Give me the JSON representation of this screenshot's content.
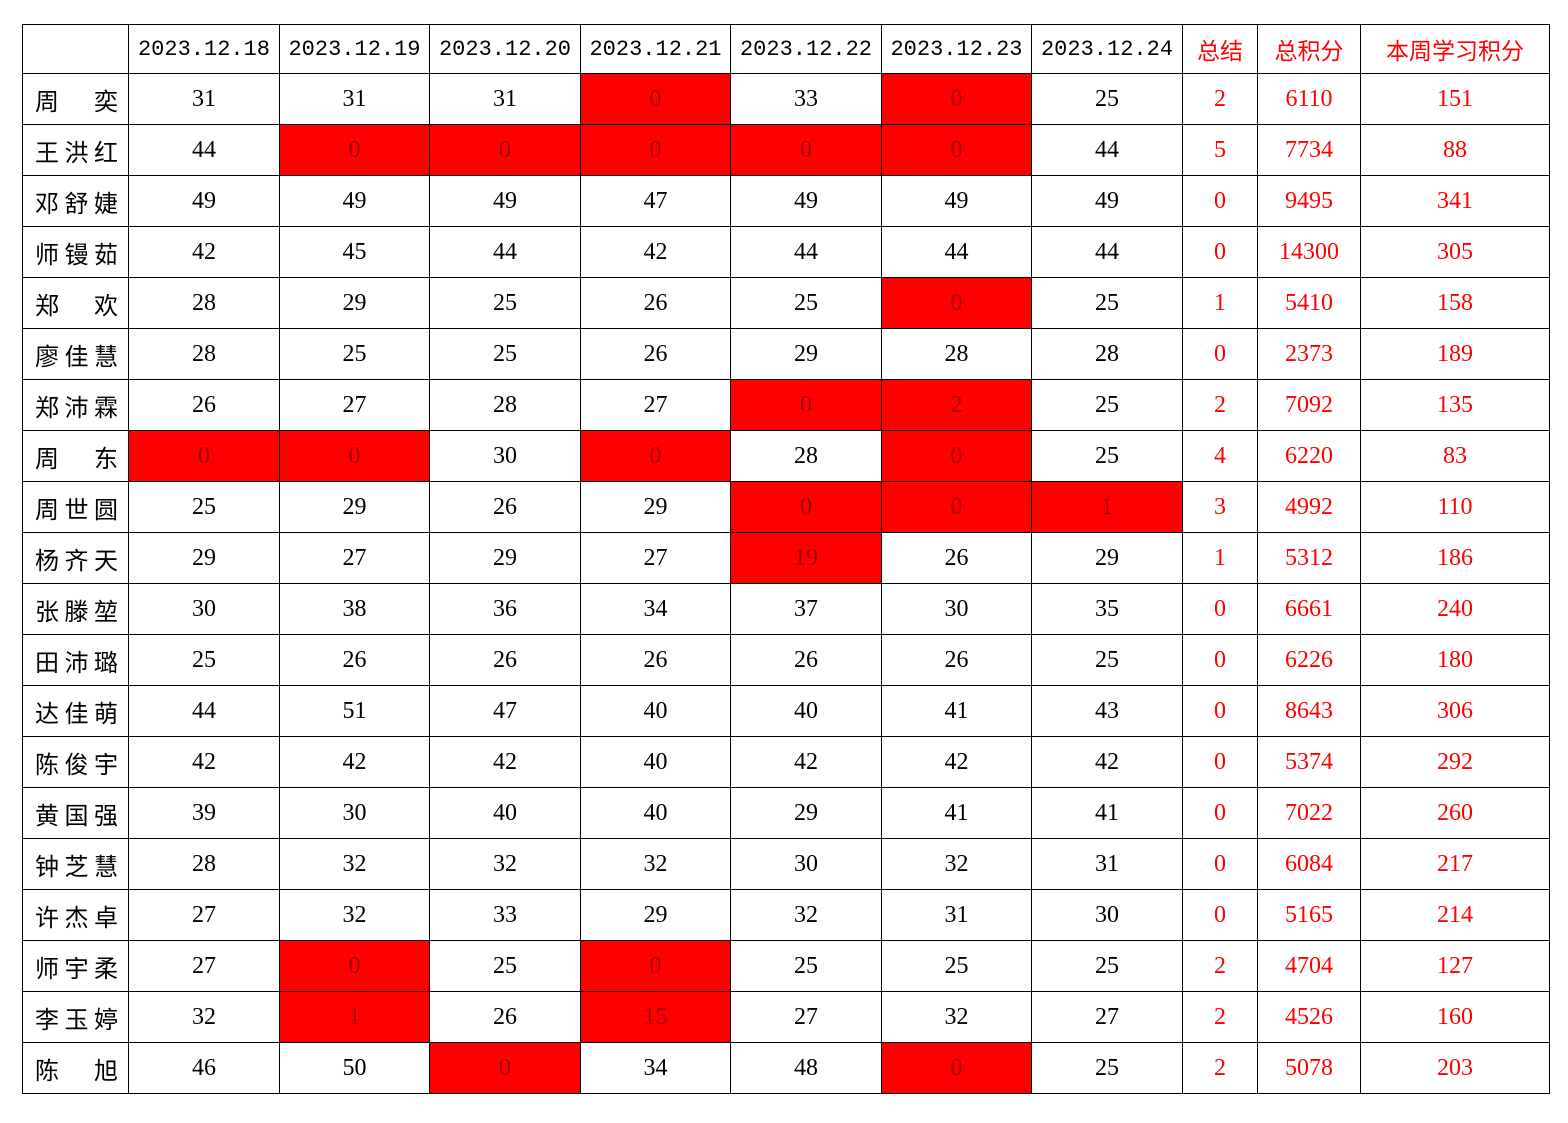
{
  "table": {
    "highlight_color": "#ff0000",
    "header": [
      "2023.12.18",
      "2023.12.19",
      "2023.12.20",
      "2023.12.21",
      "2023.12.22",
      "2023.12.23",
      "2023.12.24",
      "总结",
      "总积分",
      "本周学习积分"
    ],
    "rows": [
      {
        "name": "周 奕",
        "days": [
          31,
          31,
          31,
          0,
          33,
          0,
          25
        ],
        "summary": 2,
        "total": 6110,
        "weekly": 151,
        "flagged": [
          3,
          5
        ]
      },
      {
        "name": "王洪红",
        "days": [
          44,
          0,
          0,
          0,
          0,
          0,
          44
        ],
        "summary": 5,
        "total": 7734,
        "weekly": 88,
        "flagged": [
          1,
          2,
          3,
          4,
          5
        ]
      },
      {
        "name": "邓舒婕",
        "days": [
          49,
          49,
          49,
          47,
          49,
          49,
          49
        ],
        "summary": 0,
        "total": 9495,
        "weekly": 341,
        "flagged": []
      },
      {
        "name": "师镘茹",
        "days": [
          42,
          45,
          44,
          42,
          44,
          44,
          44
        ],
        "summary": 0,
        "total": 14300,
        "weekly": 305,
        "flagged": []
      },
      {
        "name": "郑 欢",
        "days": [
          28,
          29,
          25,
          26,
          25,
          0,
          25
        ],
        "summary": 1,
        "total": 5410,
        "weekly": 158,
        "flagged": [
          5
        ]
      },
      {
        "name": "廖佳慧",
        "days": [
          28,
          25,
          25,
          26,
          29,
          28,
          28
        ],
        "summary": 0,
        "total": 2373,
        "weekly": 189,
        "flagged": []
      },
      {
        "name": "郑沛霖",
        "days": [
          26,
          27,
          28,
          27,
          0,
          2,
          25
        ],
        "summary": 2,
        "total": 7092,
        "weekly": 135,
        "flagged": [
          4,
          5
        ]
      },
      {
        "name": "周 东",
        "days": [
          0,
          0,
          30,
          0,
          28,
          0,
          25
        ],
        "summary": 4,
        "total": 6220,
        "weekly": 83,
        "flagged": [
          0,
          1,
          3,
          5
        ]
      },
      {
        "name": "周世圆",
        "days": [
          25,
          29,
          26,
          29,
          0,
          0,
          1
        ],
        "summary": 3,
        "total": 4992,
        "weekly": 110,
        "flagged": [
          4,
          5,
          6
        ]
      },
      {
        "name": "杨齐天",
        "days": [
          29,
          27,
          29,
          27,
          19,
          26,
          29
        ],
        "summary": 1,
        "total": 5312,
        "weekly": 186,
        "flagged": [
          4
        ]
      },
      {
        "name": "张滕堃",
        "days": [
          30,
          38,
          36,
          34,
          37,
          30,
          35
        ],
        "summary": 0,
        "total": 6661,
        "weekly": 240,
        "flagged": []
      },
      {
        "name": "田沛璐",
        "days": [
          25,
          26,
          26,
          26,
          26,
          26,
          25
        ],
        "summary": 0,
        "total": 6226,
        "weekly": 180,
        "flagged": []
      },
      {
        "name": "达佳萌",
        "days": [
          44,
          51,
          47,
          40,
          40,
          41,
          43
        ],
        "summary": 0,
        "total": 8643,
        "weekly": 306,
        "flagged": []
      },
      {
        "name": "陈俊宇",
        "days": [
          42,
          42,
          42,
          40,
          42,
          42,
          42
        ],
        "summary": 0,
        "total": 5374,
        "weekly": 292,
        "flagged": []
      },
      {
        "name": "黄国强",
        "days": [
          39,
          30,
          40,
          40,
          29,
          41,
          41
        ],
        "summary": 0,
        "total": 7022,
        "weekly": 260,
        "flagged": []
      },
      {
        "name": "钟芝慧",
        "days": [
          28,
          32,
          32,
          32,
          30,
          32,
          31
        ],
        "summary": 0,
        "total": 6084,
        "weekly": 217,
        "flagged": []
      },
      {
        "name": "许杰卓",
        "days": [
          27,
          32,
          33,
          29,
          32,
          31,
          30
        ],
        "summary": 0,
        "total": 5165,
        "weekly": 214,
        "flagged": []
      },
      {
        "name": "师宇柔",
        "days": [
          27,
          0,
          25,
          0,
          25,
          25,
          25
        ],
        "summary": 2,
        "total": 4704,
        "weekly": 127,
        "flagged": [
          1,
          3
        ]
      },
      {
        "name": "李玉婷",
        "days": [
          32,
          1,
          26,
          15,
          27,
          32,
          27
        ],
        "summary": 2,
        "total": 4526,
        "weekly": 160,
        "flagged": [
          1,
          3
        ]
      },
      {
        "name": "陈 旭",
        "days": [
          46,
          50,
          0,
          34,
          48,
          0,
          25
        ],
        "summary": 2,
        "total": 5078,
        "weekly": 203,
        "flagged": [
          2,
          5
        ]
      }
    ]
  }
}
